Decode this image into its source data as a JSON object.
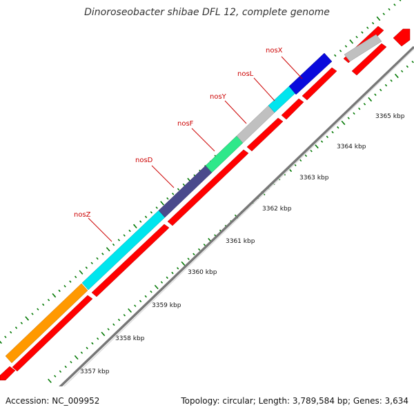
{
  "title": "Dinoroseobacter shibae DFL 12, complete genome",
  "footer": {
    "accession": "Accession: NC_009952",
    "summary": "Topology: circular; Length: 3,789,584 bp; Genes: 3,634"
  },
  "labeled_genes": [
    {
      "name": "nosZ",
      "color": "#00e5ee"
    },
    {
      "name": "nosD",
      "color": "#4a4a8c"
    },
    {
      "name": "nosF",
      "color": "#2ee88a"
    },
    {
      "name": "nosY",
      "color": "#c0c0c0"
    },
    {
      "name": "nosL",
      "color": "#00e5ee"
    },
    {
      "name": "nosX",
      "color": "#0a0adc"
    }
  ],
  "other_gene_colors": {
    "upstream": "#ff9900",
    "downstream": "#c0c0c0",
    "cds": "#ff0000",
    "backbone": "#888888",
    "ticks": "#007700"
  },
  "scale_labels": [
    "3357 kbp",
    "3358 kbp",
    "3359 kbp",
    "3360 kbp",
    "3361 kbp",
    "3362 kbp",
    "3363 kbp",
    "3364 kbp",
    "3365 kbp"
  ]
}
